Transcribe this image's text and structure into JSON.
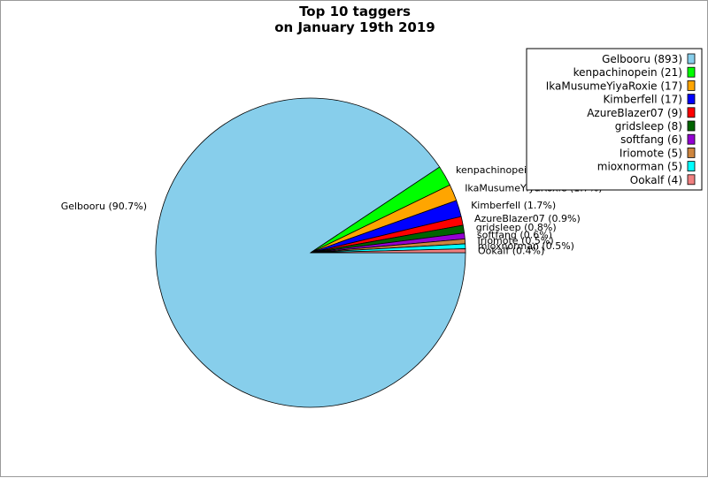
{
  "chart_data": {
    "type": "pie",
    "title_lines": [
      "Top 10 taggers",
      "on January 19th 2019"
    ],
    "slices": [
      {
        "legend": "Gelbooru (893)",
        "label": "Gelbooru (90.7%)",
        "value": 893,
        "color": "#87ceeb"
      },
      {
        "legend": "kenpachinopein (21)",
        "label": "kenpachinopein (2.1%)",
        "value": 21,
        "color": "#00ff00"
      },
      {
        "legend": "IkaMusumeYiyaRoxie (17)",
        "label": "IkaMusumeYiyaRoxie (1.7%)",
        "value": 17,
        "color": "#ffa500"
      },
      {
        "legend": "Kimberfell (17)",
        "label": "Kimberfell (1.7%)",
        "value": 17,
        "color": "#0000ff"
      },
      {
        "legend": "AzureBlazer07 (9)",
        "label": "AzureBlazer07 (0.9%)",
        "value": 9,
        "color": "#ff0000"
      },
      {
        "legend": "gridsleep (8)",
        "label": "gridsleep (0.8%)",
        "value": 8,
        "color": "#006400"
      },
      {
        "legend": "softfang (6)",
        "label": "softfang (0.6%)",
        "value": 6,
        "color": "#9400d3"
      },
      {
        "legend": "Iriomote (5)",
        "label": "Iriomote (0.5%)",
        "value": 5,
        "color": "#cd853f"
      },
      {
        "legend": "mioxnorman (5)",
        "label": "mioxnorman (0.5%)",
        "value": 5,
        "color": "#00ffff"
      },
      {
        "legend": "Ookalf (4)",
        "label": "Ookalf (0.4%)",
        "value": 4,
        "color": "#f08080"
      }
    ],
    "legend_position": "top-right"
  }
}
